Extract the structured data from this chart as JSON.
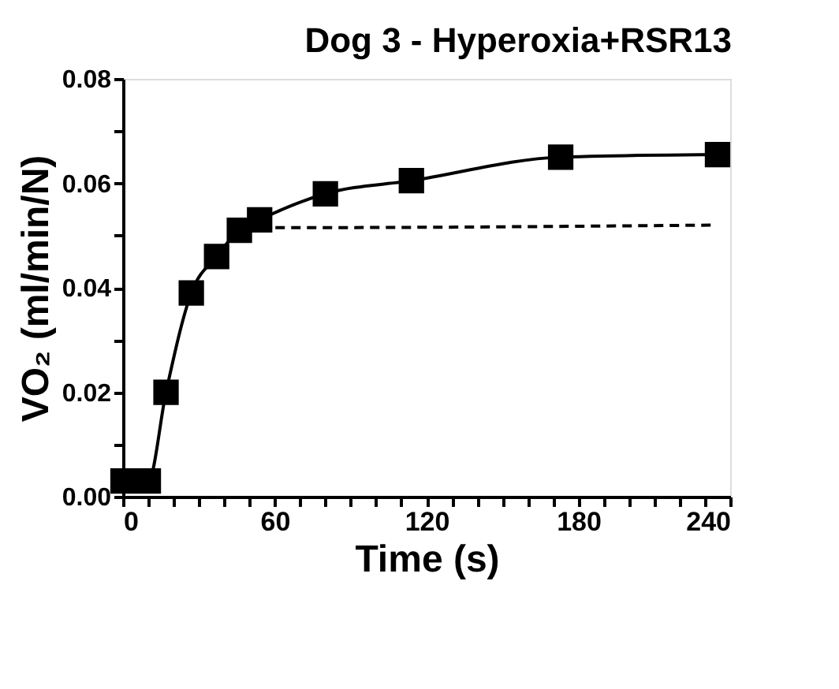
{
  "chart_data": {
    "type": "line",
    "title": "Dog 3 - Hyperoxia+RSR13",
    "xlabel": "Time (s)",
    "ylabel": "VO₂ (ml/min/N)",
    "xlim": [
      0,
      240
    ],
    "ylim": [
      0,
      0.08
    ],
    "xticks": [
      0,
      {
        "value": 10,
        "label": null
      },
      {
        "value": 20,
        "label": null
      },
      {
        "value": 30,
        "label": null
      },
      {
        "value": 40,
        "label": null
      },
      {
        "value": 50,
        "label": null
      },
      60,
      {
        "value": 70,
        "label": null
      },
      {
        "value": 80,
        "label": null
      },
      {
        "value": 90,
        "label": null
      },
      {
        "value": 100,
        "label": null
      },
      {
        "value": 110,
        "label": null
      },
      120,
      {
        "value": 130,
        "label": null
      },
      {
        "value": 140,
        "label": null
      },
      {
        "value": 150,
        "label": null
      },
      {
        "value": 160,
        "label": null
      },
      {
        "value": 170,
        "label": null
      },
      180,
      {
        "value": 190,
        "label": null
      },
      {
        "value": 200,
        "label": null
      },
      {
        "value": 210,
        "label": null
      },
      {
        "value": 220,
        "label": null
      },
      {
        "value": 230,
        "label": null
      },
      240
    ],
    "yticks": [
      {
        "value": 0,
        "label": "0.00"
      },
      {
        "value": 0.01,
        "label": null
      },
      {
        "value": 0.02,
        "label": "0.02"
      },
      {
        "value": 0.03,
        "label": null
      },
      {
        "value": 0.04,
        "label": "0.04"
      },
      {
        "value": 0.05,
        "label": null
      },
      {
        "value": 0.06,
        "label": "0.06"
      },
      {
        "value": 0.07,
        "label": null
      },
      {
        "value": 0.08,
        "label": "0.08"
      }
    ],
    "grid": false,
    "legend": false,
    "series": [
      {
        "color": "#000000",
        "marker": "square",
        "line_style": "solid",
        "x": [
          0,
          10,
          17,
          27,
          37,
          46,
          54,
          80,
          114,
          173,
          235
        ],
        "values": [
          0.003,
          0.003,
          0.02,
          0.039,
          0.046,
          0.051,
          0.053,
          0.058,
          0.0605,
          0.065,
          0.0655
        ]
      },
      {
        "color": "#000000",
        "marker": "none",
        "line_style": "dashed",
        "x": [
          54,
          60,
          233
        ],
        "values": [
          0.0515,
          0.0515,
          0.052
        ]
      }
    ]
  }
}
